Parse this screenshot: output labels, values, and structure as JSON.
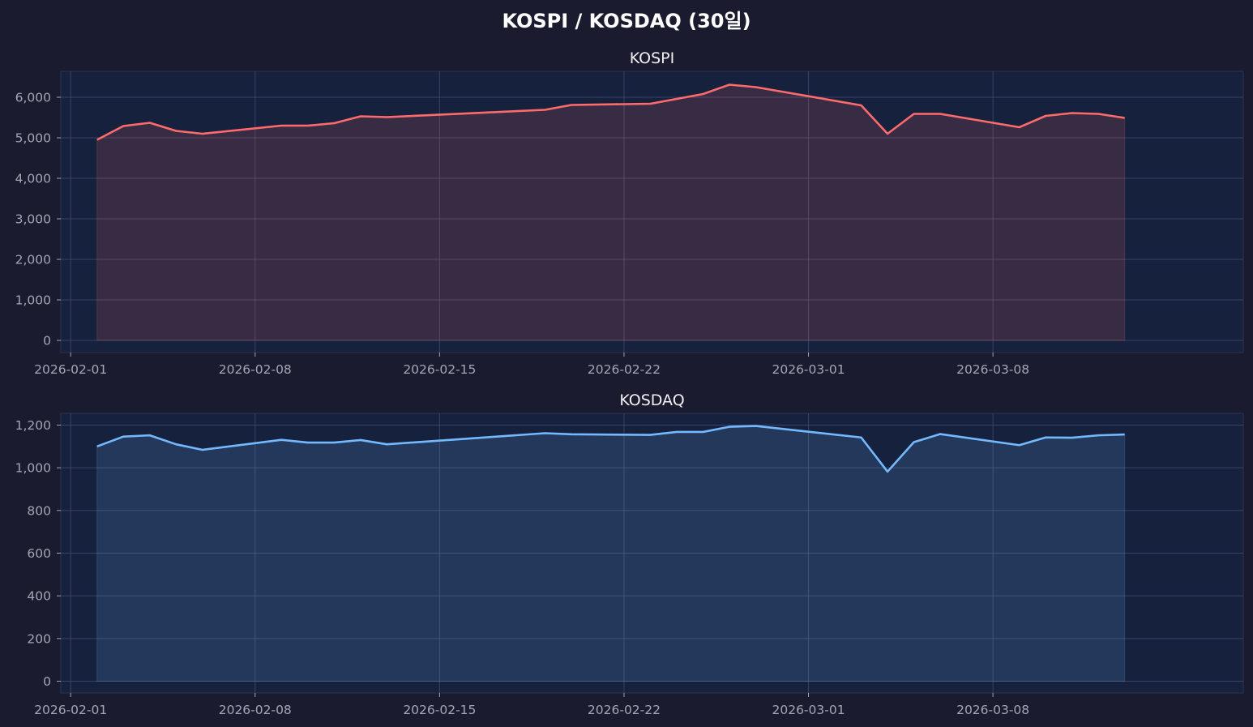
{
  "figure": {
    "suptitle": "KOSPI / KOSDAQ (30일)",
    "background": "#1a1b2e",
    "panel_background": "#16213e",
    "grid_color": "#4a5270"
  },
  "chart_data": [
    {
      "type": "area",
      "title": "KOSPI",
      "color": "#ff6b6b",
      "fill_color": "#ff6b6b",
      "grid": true,
      "ylim": [
        -300,
        6640
      ],
      "yticks": [
        0,
        1000,
        2000,
        3000,
        4000,
        5000,
        6000
      ],
      "ytick_labels": [
        "0",
        "1,000",
        "2,000",
        "3,000",
        "4,000",
        "5,000",
        "6,000"
      ],
      "xlim": [
        "2026-01-31T15:00",
        "2026-03-17T12:00"
      ],
      "xticks": [
        "2026-02-01",
        "2026-02-08",
        "2026-02-15",
        "2026-02-22",
        "2026-03-01",
        "2026-03-08"
      ],
      "xtick_labels": [
        "2026-02-01",
        "2026-02-08",
        "2026-02-15",
        "2026-02-22",
        "2026-03-01",
        "2026-03-08"
      ],
      "x": [
        "2026-02-02",
        "2026-02-03",
        "2026-02-04",
        "2026-02-05",
        "2026-02-06",
        "2026-02-09",
        "2026-02-10",
        "2026-02-11",
        "2026-02-12",
        "2026-02-13",
        "2026-02-19",
        "2026-02-20",
        "2026-02-23",
        "2026-02-25",
        "2026-02-26",
        "2026-02-27",
        "2026-03-03",
        "2026-03-04",
        "2026-03-05",
        "2026-03-06",
        "2026-03-09",
        "2026-03-10",
        "2026-03-11",
        "2026-03-12",
        "2026-03-13"
      ],
      "series": [
        {
          "values": [
            4950,
            5290,
            5370,
            5170,
            5100,
            5300,
            5300,
            5360,
            5530,
            5510,
            5690,
            5810,
            5840,
            6080,
            6310,
            6250,
            5800,
            5100,
            5590,
            5590,
            5260,
            5540,
            5610,
            5590,
            5490
          ]
        }
      ]
    },
    {
      "type": "area",
      "title": "KOSDAQ",
      "color": "#74b9ff",
      "fill_color": "#74b9ff",
      "grid": true,
      "ylim": [
        -55,
        1255
      ],
      "yticks": [
        0,
        200,
        400,
        600,
        800,
        1000,
        1200
      ],
      "ytick_labels": [
        "0",
        "200",
        "400",
        "600",
        "800",
        "1,000",
        "1,200"
      ],
      "xlim": [
        "2026-01-31T15:00",
        "2026-03-17T12:00"
      ],
      "xticks": [
        "2026-02-01",
        "2026-02-08",
        "2026-02-15",
        "2026-02-22",
        "2026-03-01",
        "2026-03-08"
      ],
      "xtick_labels": [
        "2026-02-01",
        "2026-02-08",
        "2026-02-15",
        "2026-02-22",
        "2026-03-01",
        "2026-03-08"
      ],
      "x": [
        "2026-02-02",
        "2026-02-03",
        "2026-02-04",
        "2026-02-05",
        "2026-02-06",
        "2026-02-09",
        "2026-02-10",
        "2026-02-11",
        "2026-02-12",
        "2026-02-13",
        "2026-02-19",
        "2026-02-20",
        "2026-02-23",
        "2026-02-24",
        "2026-02-25",
        "2026-02-26",
        "2026-02-27",
        "2026-03-03",
        "2026-03-04",
        "2026-03-05",
        "2026-03-06",
        "2026-03-09",
        "2026-03-10",
        "2026-03-11",
        "2026-03-12",
        "2026-03-13"
      ],
      "series": [
        {
          "values": [
            1100,
            1146,
            1152,
            1110,
            1084,
            1131,
            1118,
            1118,
            1130,
            1110,
            1162,
            1157,
            1154,
            1168,
            1168,
            1192,
            1196,
            1142,
            982,
            1120,
            1158,
            1106,
            1142,
            1141,
            1152,
            1156
          ]
        }
      ]
    }
  ]
}
